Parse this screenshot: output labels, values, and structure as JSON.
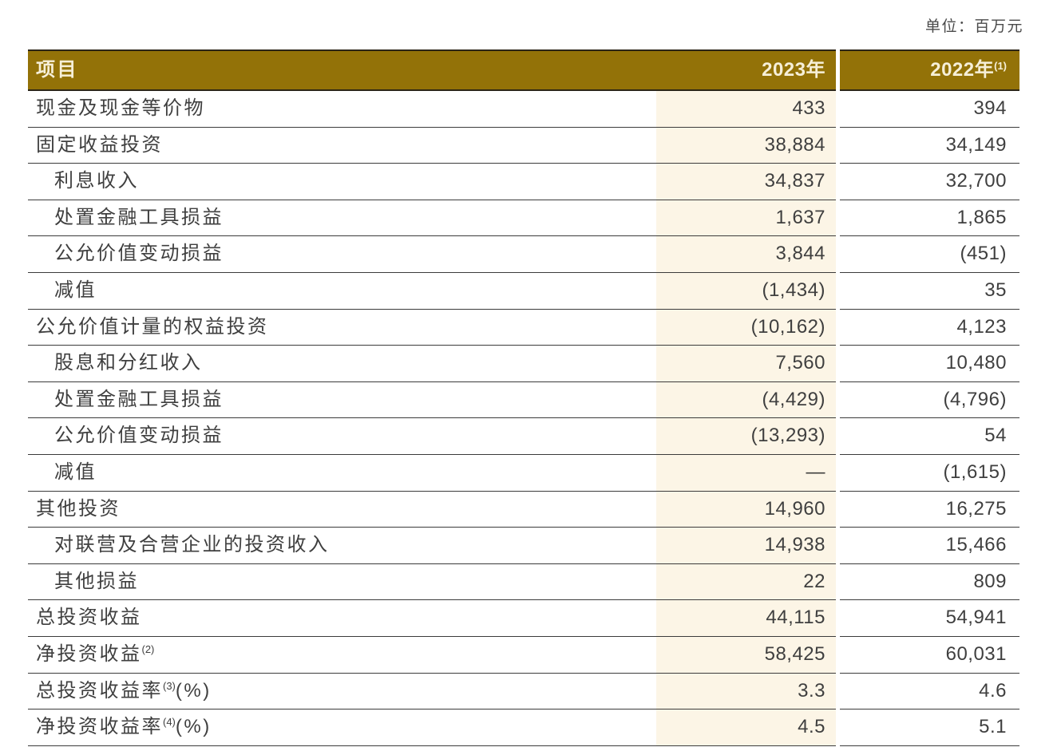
{
  "unit_note": "单位：百万元",
  "colors": {
    "header_bg": "#937208",
    "header_text": "#F6EFD8",
    "highlight_bg": "#FCF5E6",
    "row_line": "#3B3B3B",
    "text": "#3F3F3F"
  },
  "table": {
    "header": {
      "item": "项目",
      "col_2023": "2023年",
      "col_2022": "2022年",
      "col_2022_sup": "(1)"
    },
    "rows": [
      {
        "label": "现金及现金等价物",
        "sup": "",
        "suffix": "",
        "indent": false,
        "v2023": "433",
        "v2022": "394"
      },
      {
        "label": "固定收益投资",
        "sup": "",
        "suffix": "",
        "indent": false,
        "v2023": "38,884",
        "v2022": "34,149"
      },
      {
        "label": "利息收入",
        "sup": "",
        "suffix": "",
        "indent": true,
        "v2023": "34,837",
        "v2022": "32,700"
      },
      {
        "label": "处置金融工具损益",
        "sup": "",
        "suffix": "",
        "indent": true,
        "v2023": "1,637",
        "v2022": "1,865"
      },
      {
        "label": "公允价值变动损益",
        "sup": "",
        "suffix": "",
        "indent": true,
        "v2023": "3,844",
        "v2022": "(451)"
      },
      {
        "label": "减值",
        "sup": "",
        "suffix": "",
        "indent": true,
        "v2023": "(1,434)",
        "v2022": "35"
      },
      {
        "label": "公允价值计量的权益投资",
        "sup": "",
        "suffix": "",
        "indent": false,
        "v2023": "(10,162)",
        "v2022": "4,123"
      },
      {
        "label": "股息和分红收入",
        "sup": "",
        "suffix": "",
        "indent": true,
        "v2023": "7,560",
        "v2022": "10,480"
      },
      {
        "label": "处置金融工具损益",
        "sup": "",
        "suffix": "",
        "indent": true,
        "v2023": "(4,429)",
        "v2022": "(4,796)"
      },
      {
        "label": "公允价值变动损益",
        "sup": "",
        "suffix": "",
        "indent": true,
        "v2023": "(13,293)",
        "v2022": "54"
      },
      {
        "label": "减值",
        "sup": "",
        "suffix": "",
        "indent": true,
        "v2023": "—",
        "v2022": "(1,615)"
      },
      {
        "label": "其他投资",
        "sup": "",
        "suffix": "",
        "indent": false,
        "v2023": "14,960",
        "v2022": "16,275"
      },
      {
        "label": "对联营及合营企业的投资收入",
        "sup": "",
        "suffix": "",
        "indent": true,
        "v2023": "14,938",
        "v2022": "15,466"
      },
      {
        "label": "其他损益",
        "sup": "",
        "suffix": "",
        "indent": true,
        "v2023": "22",
        "v2022": "809"
      },
      {
        "label": "总投资收益",
        "sup": "",
        "suffix": "",
        "indent": false,
        "v2023": "44,115",
        "v2022": "54,941"
      },
      {
        "label": "净投资收益",
        "sup": "(2)",
        "suffix": "",
        "indent": false,
        "v2023": "58,425",
        "v2022": "60,031"
      },
      {
        "label": "总投资收益率",
        "sup": "(3)",
        "suffix": "(%)",
        "indent": false,
        "v2023": "3.3",
        "v2022": "4.6"
      },
      {
        "label": "净投资收益率",
        "sup": "(4)",
        "suffix": "(%)",
        "indent": false,
        "v2023": "4.5",
        "v2022": "5.1"
      }
    ]
  }
}
